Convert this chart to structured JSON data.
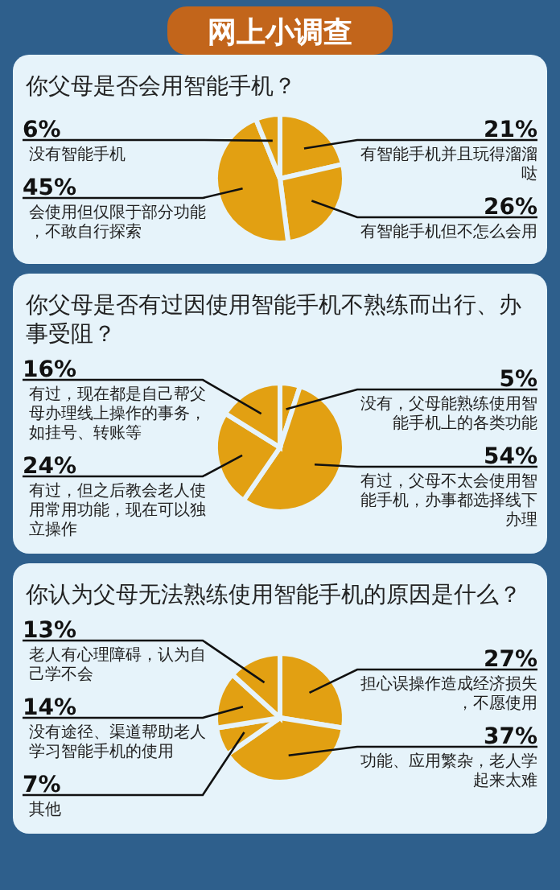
{
  "chart_data": [
    {
      "type": "other",
      "title": "网上小调查"
    },
    {
      "type": "pie",
      "title": "你父母是否会用智能手机？",
      "categories": [
        "有智能手机并且玩得溜溜哒",
        "有智能手机但不怎么会用",
        "会使用但仅限于部分功能，不敢自行探索",
        "没有智能手机"
      ],
      "values": [
        21,
        26,
        45,
        6
      ],
      "value_labels": [
        "21%",
        "26%",
        "45%",
        "6%"
      ],
      "colors": [
        "#e2a012",
        "#e2a012",
        "#e2a012",
        "#e2a012"
      ]
    },
    {
      "type": "pie",
      "title": "你父母是否有过因使用智能手机不熟练而出行、办事受阻？",
      "categories": [
        "没有，父母能熟练使用智能手机上的各类功能",
        "有过，父母不太会使用智能手机，办事都选择线下办理",
        "有过，但之后教会老人使用常用功能，现在可以独立操作",
        "有过，现在都是自己帮父母办理线上操作的事务，如挂号、转账等"
      ],
      "values": [
        5,
        54,
        24,
        16
      ],
      "value_labels": [
        "5%",
        "54%",
        "24%",
        "16%"
      ],
      "colors": [
        "#e2a012",
        "#e2a012",
        "#e2a012",
        "#e2a012"
      ]
    },
    {
      "type": "pie",
      "title": "你认为父母无法熟练使用智能手机的原因是什么？",
      "categories": [
        "担心误操作造成经济损失，不愿使用",
        "功能、应用繁杂，老人学起来太难",
        "其他",
        "没有途径、渠道帮助老人学习智能手机的使用",
        "老人有心理障碍，认为自己学不会"
      ],
      "values": [
        27,
        37,
        7,
        14,
        13
      ],
      "value_labels": [
        "27%",
        "37%",
        "7%",
        "14%",
        "13%"
      ],
      "colors": [
        "#e2a012",
        "#e2a012",
        "#e2a012",
        "#e2a012",
        "#e2a012"
      ]
    }
  ]
}
